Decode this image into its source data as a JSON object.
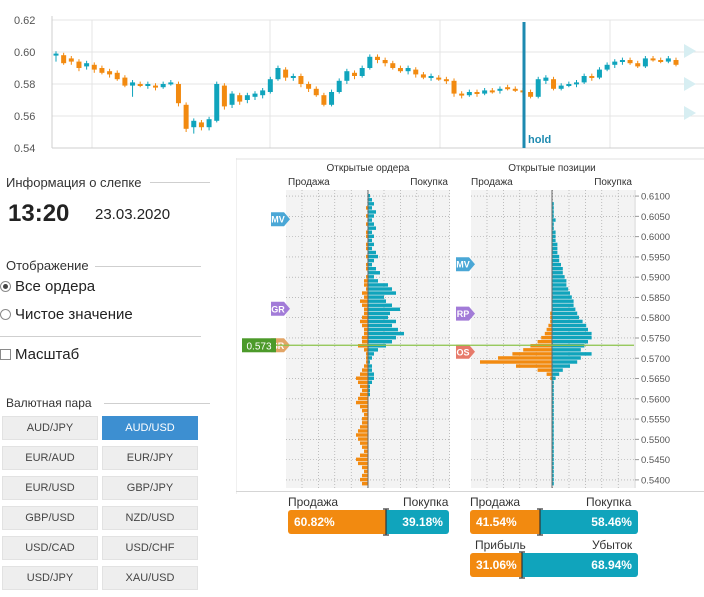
{
  "chart_data": [
    {
      "type": "candlestick",
      "y_ticks": [
        "0.62",
        "0.60",
        "0.58",
        "0.56",
        "0.54"
      ],
      "ylim": [
        0.54,
        0.62
      ],
      "grid": true,
      "hold_label": "hold",
      "candles": [
        [
          0.599,
          0.599,
          0.594
        ],
        [
          0.598,
          0.593,
          0.592
        ],
        [
          0.596,
          0.594,
          0.592
        ],
        [
          0.594,
          0.59,
          0.588
        ],
        [
          0.591,
          0.593,
          0.589
        ],
        [
          0.592,
          0.589,
          0.587
        ],
        [
          0.59,
          0.587,
          0.586
        ],
        [
          0.588,
          0.586,
          0.584
        ],
        [
          0.587,
          0.583,
          0.582
        ],
        [
          0.584,
          0.579,
          0.578
        ],
        [
          0.579,
          0.581,
          0.572
        ],
        [
          0.58,
          0.579,
          0.578
        ],
        [
          0.579,
          0.58,
          0.577
        ],
        [
          0.579,
          0.578,
          0.576
        ],
        [
          0.578,
          0.58,
          0.577
        ],
        [
          0.58,
          0.581,
          0.579
        ],
        [
          0.58,
          0.568,
          0.566
        ],
        [
          0.567,
          0.552,
          0.55
        ],
        [
          0.553,
          0.557,
          0.549
        ],
        [
          0.556,
          0.553,
          0.551
        ],
        [
          0.553,
          0.558,
          0.551
        ],
        [
          0.557,
          0.58,
          0.556
        ],
        [
          0.579,
          0.566,
          0.564
        ],
        [
          0.567,
          0.574,
          0.565
        ],
        [
          0.573,
          0.569,
          0.567
        ],
        [
          0.57,
          0.573,
          0.568
        ],
        [
          0.572,
          0.574,
          0.57
        ],
        [
          0.573,
          0.576,
          0.571
        ],
        [
          0.575,
          0.583,
          0.574
        ],
        [
          0.583,
          0.59,
          0.582
        ],
        [
          0.589,
          0.584,
          0.582
        ],
        [
          0.584,
          0.585,
          0.582
        ],
        [
          0.585,
          0.58,
          0.578
        ],
        [
          0.58,
          0.577,
          0.575
        ],
        [
          0.577,
          0.573,
          0.572
        ],
        [
          0.573,
          0.567,
          0.566
        ],
        [
          0.567,
          0.575,
          0.566
        ],
        [
          0.575,
          0.582,
          0.574
        ],
        [
          0.582,
          0.588,
          0.58
        ],
        [
          0.587,
          0.585,
          0.583
        ],
        [
          0.585,
          0.59,
          0.584
        ],
        [
          0.59,
          0.597,
          0.589
        ],
        [
          0.597,
          0.595,
          0.593
        ],
        [
          0.595,
          0.593,
          0.591
        ],
        [
          0.593,
          0.59,
          0.589
        ],
        [
          0.59,
          0.588,
          0.587
        ],
        [
          0.588,
          0.59,
          0.586
        ],
        [
          0.589,
          0.586,
          0.584
        ],
        [
          0.586,
          0.584,
          0.583
        ],
        [
          0.584,
          0.585,
          0.582
        ],
        [
          0.584,
          0.583,
          0.582
        ],
        [
          0.583,
          0.582,
          0.58
        ],
        [
          0.582,
          0.574,
          0.572
        ],
        [
          0.574,
          0.573,
          0.571
        ],
        [
          0.573,
          0.575,
          0.572
        ],
        [
          0.575,
          0.574,
          0.572
        ],
        [
          0.574,
          0.576,
          0.573
        ],
        [
          0.576,
          0.575,
          0.574
        ],
        [
          0.576,
          0.577,
          0.574
        ],
        [
          0.578,
          0.577,
          0.576
        ],
        [
          0.577,
          0.576,
          0.575
        ],
        [
          0.576,
          0.575,
          0.573
        ],
        [
          0.575,
          0.572,
          0.571
        ],
        [
          0.572,
          0.583,
          0.571
        ],
        [
          0.582,
          0.584,
          0.58
        ],
        [
          0.583,
          0.577,
          0.576
        ],
        [
          0.577,
          0.579,
          0.576
        ],
        [
          0.579,
          0.58,
          0.578
        ],
        [
          0.58,
          0.581,
          0.578
        ],
        [
          0.581,
          0.585,
          0.58
        ],
        [
          0.585,
          0.584,
          0.582
        ],
        [
          0.584,
          0.589,
          0.583
        ],
        [
          0.589,
          0.592,
          0.588
        ],
        [
          0.592,
          0.594,
          0.59
        ],
        [
          0.594,
          0.595,
          0.592
        ],
        [
          0.595,
          0.593,
          0.592
        ],
        [
          0.593,
          0.591,
          0.59
        ],
        [
          0.591,
          0.596,
          0.59
        ],
        [
          0.596,
          0.595,
          0.594
        ],
        [
          0.595,
          0.594,
          0.593
        ],
        [
          0.594,
          0.596,
          0.593
        ],
        [
          0.595,
          0.592,
          0.591
        ]
      ]
    },
    {
      "type": "bar",
      "orientation": "horizontal",
      "title": "Открытые ордера",
      "left_label": "Продажа",
      "right_label": "Покупка",
      "price_ticks": [
        "0.6100",
        "0.6050",
        "0.6000",
        "0.5950",
        "0.5900",
        "0.5850",
        "0.5800",
        "0.5750",
        "0.5700",
        "0.5650",
        "0.5600",
        "0.5550",
        "0.5500",
        "0.5450",
        "0.5400"
      ],
      "current_price": "0.573",
      "markers": [
        {
          "label": "MV",
          "price": 0.6043,
          "color": "#4aa7d6"
        },
        {
          "label": "GR",
          "price": 0.5822,
          "color": "#a27bd8"
        },
        {
          "label": "SR",
          "price": 0.5732,
          "color": "#e2a566"
        }
      ],
      "buy": [
        1,
        2,
        3,
        2,
        4,
        3,
        2,
        3,
        4,
        2,
        3,
        2,
        3,
        2,
        4,
        5,
        3,
        2,
        4,
        6,
        3,
        5,
        10,
        12,
        14,
        8,
        9,
        12,
        16,
        11,
        10,
        14,
        12,
        15,
        18,
        14,
        12,
        9,
        5,
        3,
        2,
        1,
        2,
        2,
        3,
        3,
        2,
        1,
        1,
        1,
        0,
        0,
        0,
        0,
        0,
        0,
        0,
        0,
        0,
        0,
        0,
        0,
        0,
        0,
        0,
        0,
        0,
        0,
        0,
        0,
        0,
        0
      ],
      "sell": [
        0,
        0,
        0,
        1,
        0,
        1,
        0,
        1,
        0,
        1,
        1,
        0,
        1,
        1,
        0,
        1,
        0,
        1,
        1,
        0,
        1,
        2,
        2,
        1,
        3,
        2,
        4,
        3,
        2,
        2,
        3,
        4,
        3,
        2,
        2,
        3,
        3,
        5,
        2,
        1,
        1,
        1,
        2,
        3,
        4,
        6,
        5,
        4,
        3,
        4,
        5,
        6,
        4,
        3,
        2,
        3,
        3,
        4,
        5,
        6,
        5,
        4,
        3,
        2,
        4,
        6,
        5,
        3,
        2,
        3,
        4,
        3
      ]
    },
    {
      "type": "bar",
      "orientation": "horizontal",
      "title": "Открытые позиции",
      "left_label": "Продажа",
      "right_label": "Покупка",
      "markers": [
        {
          "label": "MV",
          "price": 0.5932,
          "color": "#4aa7d6"
        },
        {
          "label": "RP",
          "price": 0.581,
          "color": "#a27bd8"
        },
        {
          "label": "OS",
          "price": 0.5716,
          "color": "#e77a6a"
        }
      ],
      "buy": [
        0,
        0,
        1,
        1,
        1,
        1,
        2,
        1,
        1,
        2,
        2,
        2,
        3,
        3,
        3,
        4,
        4,
        5,
        6,
        6,
        7,
        8,
        8,
        9,
        10,
        11,
        12,
        12,
        13,
        14,
        15,
        17,
        19,
        20,
        22,
        22,
        20,
        18,
        16,
        22,
        16,
        14,
        10,
        6,
        4,
        2,
        1,
        1,
        1,
        1,
        1,
        1,
        1,
        1,
        1,
        1,
        1,
        1,
        1,
        1,
        1,
        1,
        1,
        1,
        1,
        1,
        1,
        1,
        1,
        1,
        1,
        1
      ],
      "sell": [
        0,
        0,
        0,
        0,
        0,
        0,
        0,
        0,
        0,
        0,
        0,
        0,
        0,
        0,
        0,
        0,
        0,
        0,
        0,
        0,
        0,
        0,
        0,
        0,
        0,
        0,
        0,
        0,
        0,
        1,
        1,
        1,
        2,
        3,
        4,
        6,
        8,
        12,
        16,
        22,
        30,
        40,
        20,
        8,
        3,
        1,
        0,
        0,
        0,
        0,
        0,
        0,
        0,
        0,
        0,
        0,
        0,
        0,
        0,
        0,
        0,
        0,
        0,
        0,
        0,
        0,
        0,
        0,
        0,
        0,
        0,
        0
      ]
    }
  ],
  "left_panel": {
    "info_title": "Информация о слепке",
    "time": "13:20",
    "date": "23.03.2020",
    "display_title": "Отображение",
    "radio_all": "Все ордера",
    "radio_net": "Чистое значение",
    "scale_label": "Масштаб",
    "pair_title": "Валютная пара",
    "pairs": [
      "AUD/JPY",
      "AUD/USD",
      "EUR/AUD",
      "EUR/JPY",
      "EUR/USD",
      "GBP/JPY",
      "GBP/USD",
      "NZD/USD",
      "USD/CAD",
      "USD/CHF",
      "USD/JPY",
      "XAU/USD"
    ],
    "active_pair": "AUD/USD"
  },
  "summary": {
    "orders": {
      "sell_label": "Продажа",
      "buy_label": "Покупка",
      "sell": "60.82%",
      "buy": "39.18%",
      "sell_frac": 0.6082
    },
    "positions": {
      "sell_label": "Продажа",
      "buy_label": "Покупка",
      "sell": "41.54%",
      "buy": "58.46%",
      "sell_frac": 0.4154
    },
    "pnl": {
      "profit_label": "Прибыль",
      "loss_label": "Убыток",
      "profit": "31.06%",
      "loss": "68.94%",
      "profit_frac": 0.3106
    }
  },
  "colors": {
    "orange": "#f28a10",
    "teal": "#10a4bc",
    "price_line": "#8bc34a",
    "price_tag": "#4c9a2a",
    "blue_btn": "#3d8fd1"
  }
}
